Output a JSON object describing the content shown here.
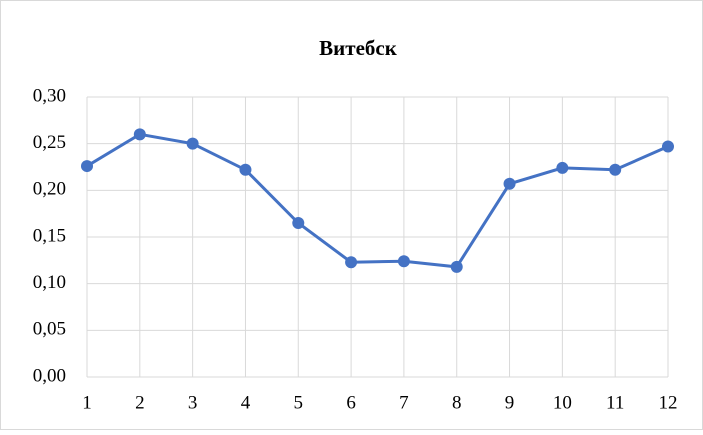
{
  "chart_data": {
    "type": "line",
    "title": "Витебск",
    "x": [
      1,
      2,
      3,
      4,
      5,
      6,
      7,
      8,
      9,
      10,
      11,
      12
    ],
    "series": [
      {
        "name": "Витебск",
        "color": "#4472c4",
        "values": [
          0.226,
          0.26,
          0.25,
          0.222,
          0.165,
          0.123,
          0.124,
          0.118,
          0.207,
          0.224,
          0.222,
          0.247
        ]
      }
    ],
    "xlim": [
      1,
      12
    ],
    "xticks": [
      1,
      2,
      3,
      4,
      5,
      6,
      7,
      8,
      9,
      10,
      11,
      12
    ],
    "ylim": [
      0,
      0.3
    ],
    "yticks": [
      {
        "value": 0,
        "label": "0,00"
      },
      {
        "value": 0.05,
        "label": "0,05"
      },
      {
        "value": 0.1,
        "label": "0,10"
      },
      {
        "value": 0.15,
        "label": "0,15"
      },
      {
        "value": 0.2,
        "label": "0,20"
      },
      {
        "value": 0.25,
        "label": "0,25"
      },
      {
        "value": 0.3,
        "label": "0,30"
      }
    ],
    "grid": true
  }
}
